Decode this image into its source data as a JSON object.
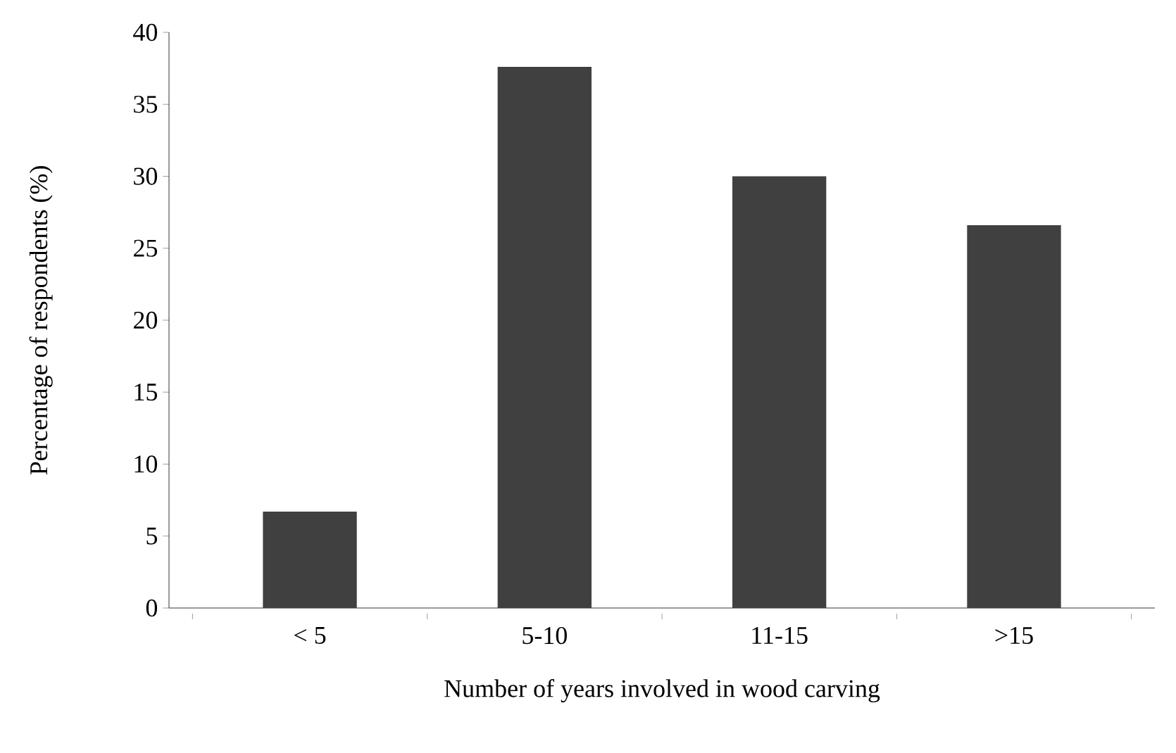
{
  "chart_data": {
    "type": "bar",
    "xlabel": "Number of years involved in wood carving",
    "ylabel": "Percentage of respondents (%)",
    "categories": [
      "< 5",
      "5-10",
      "11-15",
      ">15"
    ],
    "values": [
      6.7,
      37.6,
      30,
      26.6
    ],
    "color": "#404040",
    "ylim": [
      0,
      40
    ],
    "yticks": [
      0,
      5,
      10,
      15,
      20,
      25,
      30,
      35,
      40
    ]
  }
}
